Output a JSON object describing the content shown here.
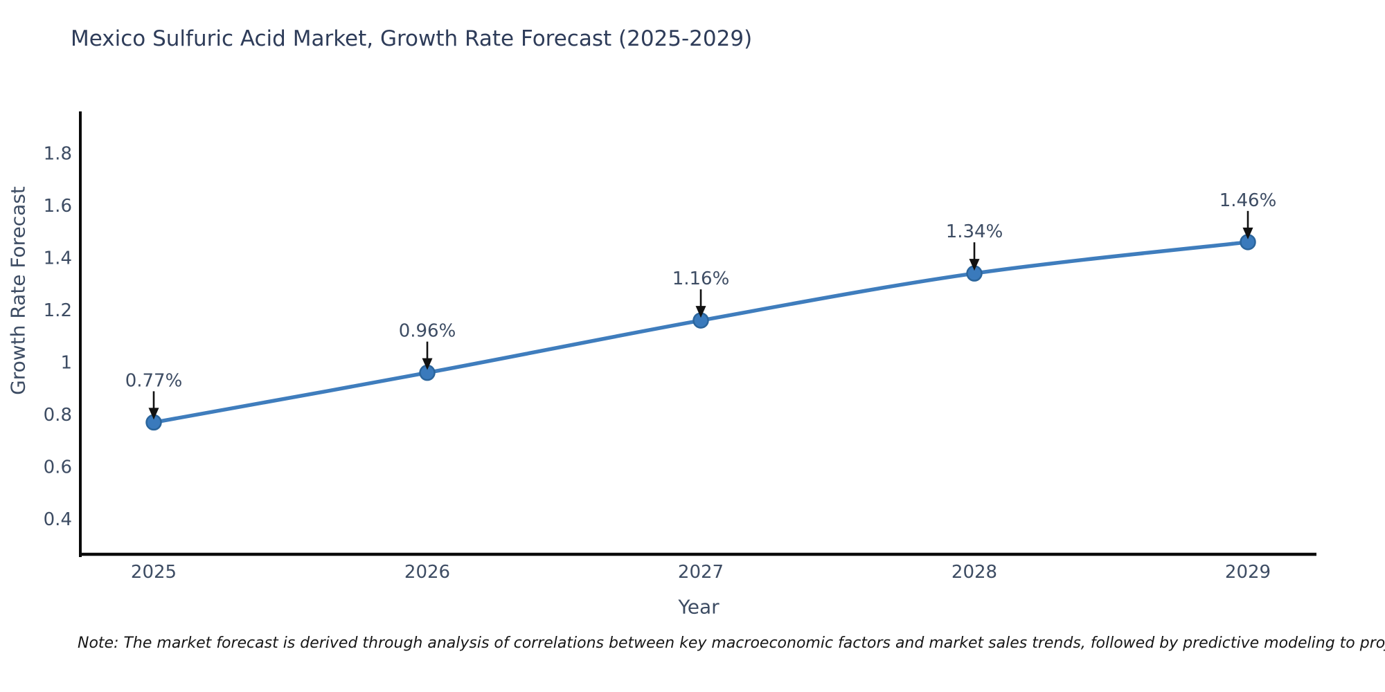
{
  "note": "Note: The market forecast is derived through analysis of correlations between key macroeconomic factors and market sales trends, followed by predictive modeling to project future sales",
  "colors": {
    "line": "#3f7dbd",
    "marker_fill": "#3a7abc",
    "marker_edge": "#2b659c",
    "spine": "#0a0a0a",
    "arrow": "#111111",
    "text": "#3d4c63",
    "title_text": "#2e3c59",
    "background": "#ffffff"
  },
  "chart_data": {
    "type": "line",
    "title": "Mexico Sulfuric Acid Market, Growth Rate Forecast (2025-2029)",
    "xlabel": "Year",
    "ylabel": "Growth Rate Forecast",
    "x": [
      2025,
      2026,
      2027,
      2028,
      2029
    ],
    "series": [
      {
        "name": "Growth Rate Forecast",
        "values": [
          0.77,
          0.96,
          1.16,
          1.34,
          1.46
        ],
        "point_labels": [
          "0.77%",
          "0.96%",
          "1.16%",
          "1.34%",
          "1.46%"
        ]
      }
    ],
    "xticks": {
      "values": [
        2025,
        2026,
        2027,
        2028,
        2029
      ],
      "labels": [
        "2025",
        "2026",
        "2027",
        "2028",
        "2029"
      ]
    },
    "yticks": {
      "values": [
        0.4,
        0.6,
        0.8,
        1,
        1.2,
        1.4,
        1.6,
        1.8
      ],
      "labels": [
        "0.4",
        "0.6",
        "0.8",
        "1",
        "1.2",
        "1.4",
        "1.6",
        "1.8"
      ]
    },
    "xlim": [
      2024.7316,
      2029.2481
    ],
    "ylim": [
      0.26,
      1.96
    ],
    "line_shape": "spline",
    "grid": false,
    "legend": "none",
    "annotations": "black arrows pointing down from each percentage label to its marker"
  }
}
